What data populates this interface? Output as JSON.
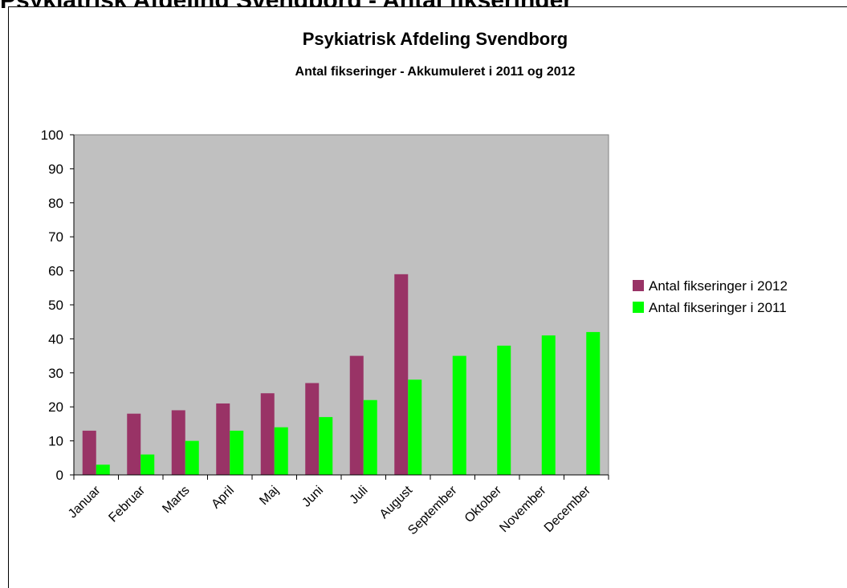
{
  "page": {
    "cutoff_heading": "Psykiatrisk Afdeling Svendborg - Antal fikseringer"
  },
  "chart_data": {
    "type": "bar",
    "title": "Psykiatrisk Afdeling Svendborg",
    "subtitle": "Antal fikseringer - Akkumuleret i 2011 og 2012",
    "xlabel": "",
    "ylabel": "",
    "ylim": [
      0,
      100
    ],
    "yticks": [
      0,
      10,
      20,
      30,
      40,
      50,
      60,
      70,
      80,
      90,
      100
    ],
    "grid": false,
    "legend_position": "right",
    "plot_background": "#c0c0c0",
    "categories": [
      "Januar",
      "Februar",
      "Marts",
      "April",
      "Maj",
      "Juni",
      "Juli",
      "August",
      "September",
      "Oktober",
      "November",
      "December"
    ],
    "series": [
      {
        "name": "Antal fikseringer i 2012",
        "color": "#993366",
        "values": [
          13,
          18,
          19,
          21,
          24,
          27,
          35,
          59,
          null,
          null,
          null,
          null
        ]
      },
      {
        "name": "Antal fikseringer i 2011",
        "color": "#00ff00",
        "values": [
          3,
          6,
          10,
          13,
          14,
          17,
          22,
          28,
          35,
          38,
          41,
          42
        ]
      }
    ]
  }
}
